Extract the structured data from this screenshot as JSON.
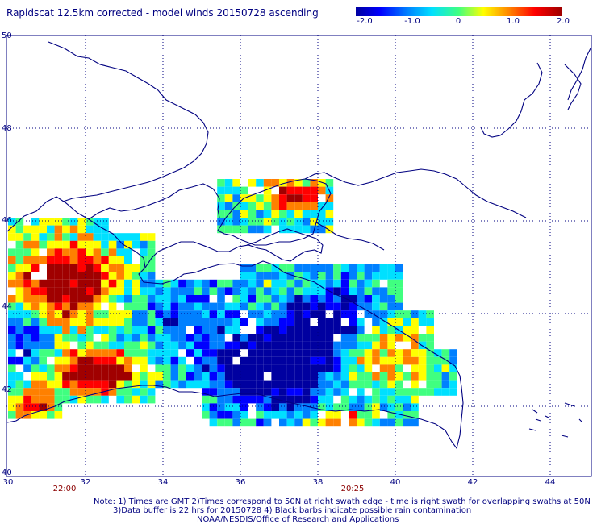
{
  "title": "Rapidscat 12.5km corrected - model winds 20150728 ascending",
  "colorbar": {
    "ticks": [
      "-2.0",
      "-1.0",
      "0",
      "1.0",
      "2.0"
    ],
    "tick_values": [
      -2.0,
      -1.0,
      0,
      1.0,
      2.0
    ],
    "range": [
      -2.0,
      2.0
    ],
    "colors": [
      "#0000a0",
      "#0000ff",
      "#0080ff",
      "#00e0ff",
      "#40ff80",
      "#ffff00",
      "#ff8000",
      "#ff0000",
      "#a00000"
    ]
  },
  "map": {
    "lon_range": [
      30,
      45
    ],
    "lat_range": [
      40,
      50
    ],
    "lon_labels": [
      "30",
      "32",
      "34",
      "36",
      "38",
      "40",
      "42",
      "44"
    ],
    "lat_labels": [
      "50",
      "48",
      "46",
      "44",
      "42",
      "40"
    ],
    "grid": "dotted",
    "swath_times": [
      {
        "label": "22:00",
        "lon": 32.0
      },
      {
        "label": "20:25",
        "lon": 38.8
      }
    ]
  },
  "notes": {
    "line1": "Note: 1) Times are GMT 2)Times correspond to 50N at right swath edge - time is right swath for overlapping swaths at 50N",
    "line2": "3)Data buffer is 22 hrs for 20150728 4) Black barbs indicate possible rain contamination",
    "line3": "NOAA/NESDIS/Office of Research and Applications"
  },
  "colors": {
    "text": "#000080",
    "coast": "#000080",
    "time": "#8b0000"
  }
}
